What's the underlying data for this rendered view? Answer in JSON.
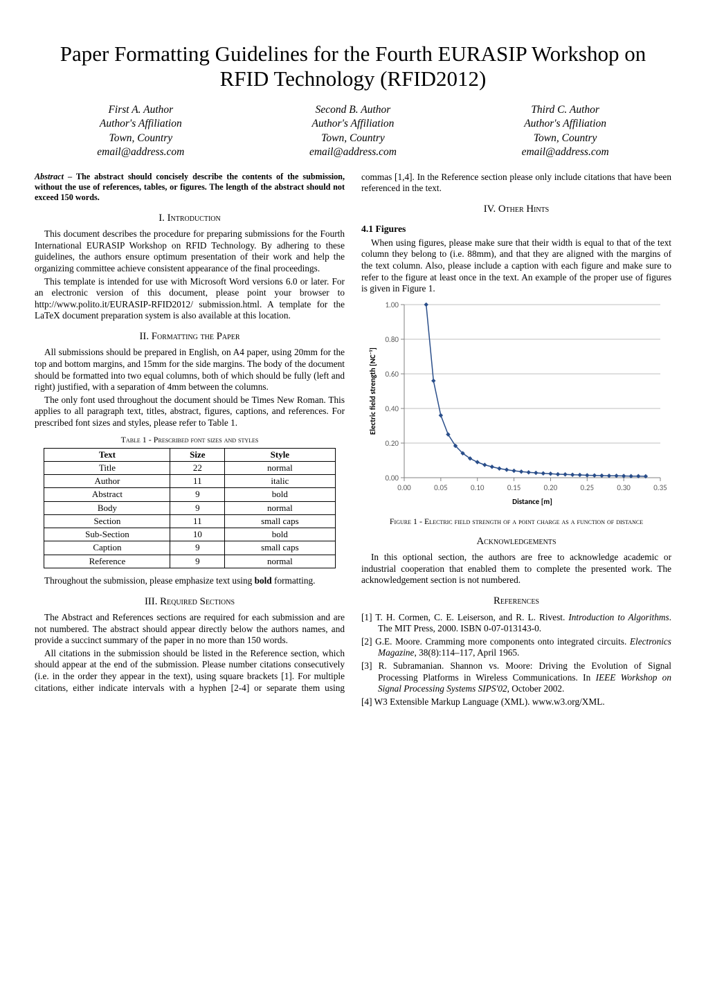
{
  "title": "Paper Formatting Guidelines for the Fourth EURASIP Workshop on RFID Technology (RFID2012)",
  "authors": [
    {
      "name": "First A. Author",
      "affiliation": "Author's Affiliation",
      "town": "Town, Country",
      "email": "email@address.com"
    },
    {
      "name": "Second B. Author",
      "affiliation": "Author's Affiliation",
      "town": "Town, Country",
      "email": "email@address.com"
    },
    {
      "name": "Third C. Author",
      "affiliation": "Author's Affiliation",
      "town": "Town, Country",
      "email": "email@address.com"
    }
  ],
  "abstract": {
    "label": "Abstract",
    "text": " – The abstract should concisely describe the contents of the submission, without the use of references, tables, or figures. The length of the abstract should not exceed 150 words."
  },
  "sections": {
    "intro_title": "I. Introduction",
    "intro_p1": "This document describes the procedure for preparing submissions for the Fourth International EURASIP Workshop on RFID Technology. By adhering to these guidelines, the authors ensure optimum presentation of their work and help the organizing committee achieve consistent appearance of the final proceedings.",
    "intro_p2": "This template is intended for use with Microsoft Word versions 6.0 or later. For an electronic version of this document, please point your browser to http://www.polito.it/EURASIP-RFID2012/ submission.html. A template for the LaTeX document preparation system is also available at this location.",
    "fmt_title": "II. Formatting the Paper",
    "fmt_p1": "All submissions should be prepared in English, on A4 paper, using 20mm for the top and bottom margins, and 15mm for the side margins. The body of the document should be formatted into two equal columns, both of which should be fully (left and right) justified, with a separation of 4mm between the columns.",
    "fmt_p2": "The only font used throughout the document should be Times New Roman. This applies to all paragraph text, titles, abstract, figures, captions, and references. For prescribed font sizes and styles, please refer to Table 1.",
    "fmt_p3_a": "Throughout the submission, please emphasize text using ",
    "fmt_p3_bold": "bold",
    "fmt_p3_b": " formatting.",
    "req_title": "III. Required Sections",
    "req_p1": "The Abstract and References sections are required for each submission and are not numbered. The abstract should appear directly below the authors names, and provide a succinct summary of the paper in no more than 150 words.",
    "req_p2": "All citations in the submission should be listed in the Reference section, which should appear at the end of the submission. Please number citations consecutively (i.e. in the order they appear in the text), using square brackets [1]. For multiple citations, either indicate intervals with a hyphen [2-4] or separate them using commas [1,4]. In the Reference section please only include citations that have been referenced in the text.",
    "hints_title": "IV. Other Hints",
    "hints_sub": "4.1 Figures",
    "hints_p1": "When using figures, please make sure that their width is equal to that of the text column they belong to (i.e. 88mm), and that they are aligned with the margins of the text column. Also, please include a caption with each figure and make sure to refer to the figure at least once in the text. An example of the proper use of figures is given in Figure 1.",
    "ack_title": "Acknowledgements",
    "ack_p1": "In this optional section, the authors are free to acknowledge academic or industrial cooperation that enabled them to complete the presented work. The acknowledgement section is not numbered.",
    "ref_title": "References"
  },
  "table1": {
    "caption": "Table 1 - Prescribed font sizes and styles",
    "headers": [
      "Text",
      "Size",
      "Style"
    ],
    "rows": [
      [
        "Title",
        "22",
        "normal"
      ],
      [
        "Author",
        "11",
        "italic"
      ],
      [
        "Abstract",
        "9",
        "bold"
      ],
      [
        "Body",
        "9",
        "normal"
      ],
      [
        "Section",
        "11",
        "small caps"
      ],
      [
        "Sub-Section",
        "10",
        "bold"
      ],
      [
        "Caption",
        "9",
        "small caps"
      ],
      [
        "Reference",
        "9",
        "normal"
      ]
    ]
  },
  "figure1": {
    "caption": "Figure 1 - Electric field strength of a point charge as a function of distance",
    "type": "line",
    "xlabel": "Distance [m]",
    "ylabel": "Electric field strength [NC⁻¹]",
    "xlim": [
      0.0,
      0.35
    ],
    "ylim": [
      0.0,
      1.0
    ],
    "xtick_step": 0.05,
    "ytick_step": 0.2,
    "xticks": [
      "0.00",
      "0.05",
      "0.10",
      "0.15",
      "0.20",
      "0.25",
      "0.30",
      "0.35"
    ],
    "yticks": [
      "0.00",
      "0.20",
      "0.40",
      "0.60",
      "0.80",
      "1.00"
    ],
    "line_color": "#2a4e8a",
    "marker_shape": "diamond",
    "marker_color": "#2a4e8a",
    "marker_size": 5,
    "line_width": 1.5,
    "grid_color": "#bfbfbf",
    "grid_width": 1,
    "background_color": "#ffffff",
    "axis_color": "#808080",
    "tick_fontsize": 11,
    "label_fontsize": 11,
    "data": [
      {
        "x": 0.03,
        "y": 1.0
      },
      {
        "x": 0.04,
        "y": 0.56
      },
      {
        "x": 0.05,
        "y": 0.36
      },
      {
        "x": 0.06,
        "y": 0.25
      },
      {
        "x": 0.07,
        "y": 0.184
      },
      {
        "x": 0.08,
        "y": 0.141
      },
      {
        "x": 0.09,
        "y": 0.111
      },
      {
        "x": 0.1,
        "y": 0.09
      },
      {
        "x": 0.11,
        "y": 0.074
      },
      {
        "x": 0.12,
        "y": 0.063
      },
      {
        "x": 0.13,
        "y": 0.053
      },
      {
        "x": 0.14,
        "y": 0.046
      },
      {
        "x": 0.15,
        "y": 0.04
      },
      {
        "x": 0.16,
        "y": 0.035
      },
      {
        "x": 0.17,
        "y": 0.031
      },
      {
        "x": 0.18,
        "y": 0.028
      },
      {
        "x": 0.19,
        "y": 0.025
      },
      {
        "x": 0.2,
        "y": 0.023
      },
      {
        "x": 0.21,
        "y": 0.02
      },
      {
        "x": 0.22,
        "y": 0.019
      },
      {
        "x": 0.23,
        "y": 0.017
      },
      {
        "x": 0.24,
        "y": 0.016
      },
      {
        "x": 0.25,
        "y": 0.014
      },
      {
        "x": 0.26,
        "y": 0.013
      },
      {
        "x": 0.27,
        "y": 0.012
      },
      {
        "x": 0.28,
        "y": 0.011
      },
      {
        "x": 0.29,
        "y": 0.011
      },
      {
        "x": 0.3,
        "y": 0.01
      },
      {
        "x": 0.31,
        "y": 0.009
      },
      {
        "x": 0.32,
        "y": 0.009
      },
      {
        "x": 0.33,
        "y": 0.008
      }
    ]
  },
  "references": [
    {
      "pre": "[1] T. H. Cormen, C. E. Leiserson, and R. L. Rivest. ",
      "italic": "Introduction to Algorithms",
      "post": ". The MIT Press, 2000. ISBN 0-07-013143-0."
    },
    {
      "pre": "[2] G.E. Moore. Cramming more components onto integrated circuits. ",
      "italic": "Electronics Magazine",
      "post": ", 38(8):114–117, April 1965."
    },
    {
      "pre": "[3] R. Subramanian. Shannon vs. Moore: Driving the Evolution of Signal Processing Platforms in Wireless Communications. In ",
      "italic": "IEEE Workshop on Signal Processing Systems SIPS'02",
      "post": ", October 2002."
    },
    {
      "pre": "[4] W3 Extensible Markup Language (XML). www.w3.org/XML.",
      "italic": "",
      "post": ""
    }
  ]
}
